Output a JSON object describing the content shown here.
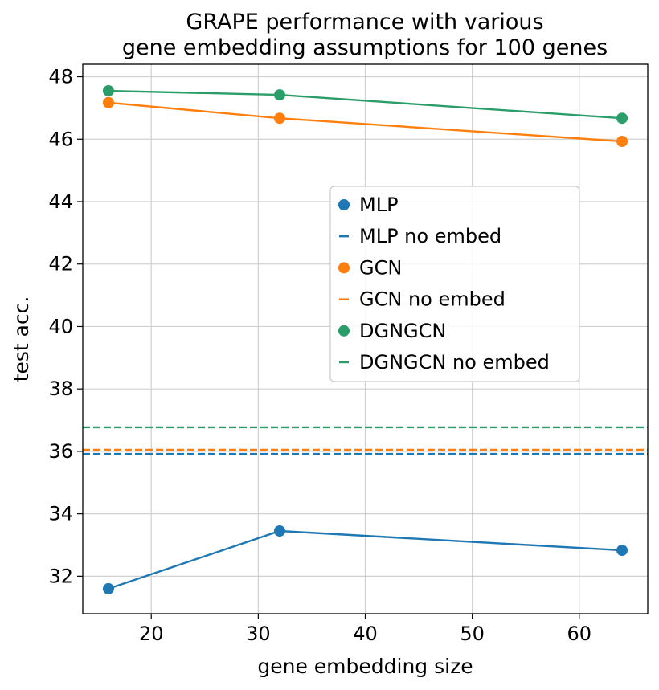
{
  "chart_data": {
    "type": "line",
    "title_lines": [
      "GRAPE performance with various",
      "gene embedding assumptions for 100 genes"
    ],
    "xlabel": "gene embedding size",
    "ylabel": "test acc.",
    "xlim": [
      13.6,
      66.4
    ],
    "ylim": [
      30.8,
      48.4
    ],
    "xticks": [
      20,
      30,
      40,
      50,
      60
    ],
    "yticks": [
      32,
      34,
      36,
      38,
      40,
      42,
      44,
      46,
      48
    ],
    "grid": true,
    "legend_position": "center-right",
    "x": [
      16,
      32,
      64
    ],
    "series": [
      {
        "name": "MLP",
        "color": "#1f77b4",
        "values": [
          31.6,
          33.45,
          32.83
        ]
      },
      {
        "name": "GCN",
        "color": "#ff7f0e",
        "values": [
          47.17,
          46.67,
          45.93
        ]
      },
      {
        "name": "DGNGCN",
        "color": "#2a9d68",
        "values": [
          47.55,
          47.42,
          46.67
        ]
      }
    ],
    "baselines": [
      {
        "name": "MLP no embed",
        "color": "#1f77b4",
        "value": 35.92
      },
      {
        "name": "GCN no embed",
        "color": "#ff7f0e",
        "value": 36.05
      },
      {
        "name": "DGNGCN no embed",
        "color": "#2a9d68",
        "value": 36.77
      }
    ],
    "legend": [
      "MLP",
      "MLP no embed",
      "GCN",
      "GCN no embed",
      "DGNGCN",
      "DGNGCN no embed"
    ]
  }
}
